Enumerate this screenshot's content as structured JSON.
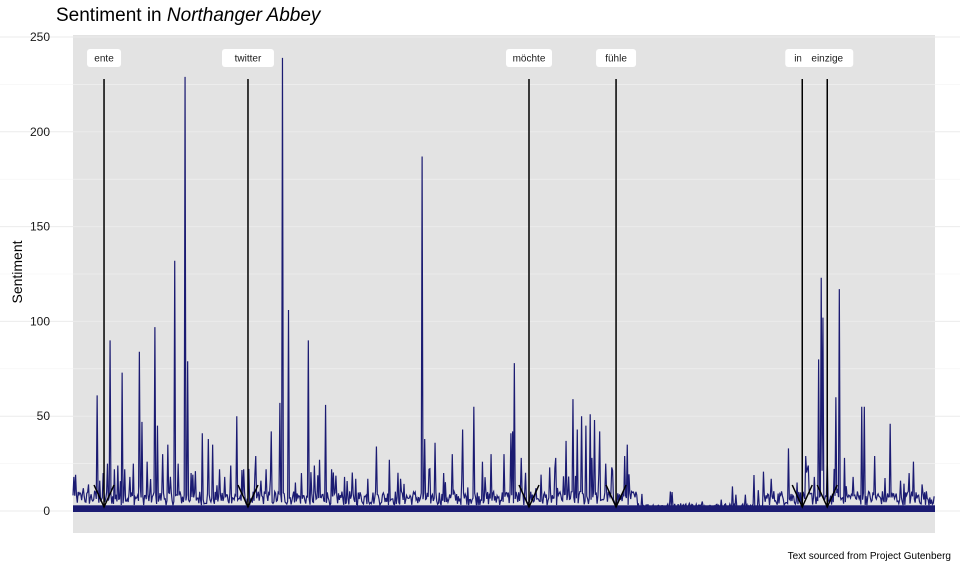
{
  "chart_data": {
    "type": "area",
    "title_prefix": "Sentiment in ",
    "title_italic": "Northanger Abbey",
    "xlabel": "",
    "ylabel": "Sentiment",
    "caption": "Text sourced from Project Gutenberg",
    "ylim": [
      0,
      250
    ],
    "yticks": [
      0,
      50,
      100,
      150,
      200,
      250
    ],
    "xlim": [
      0,
      1000
    ],
    "grid": true,
    "line_color": "#1b1b72",
    "panel_color": "#e3e3e3",
    "baseline": 3,
    "spikes": [
      [
        1,
        18
      ],
      [
        12,
        12
      ],
      [
        18,
        14
      ],
      [
        28,
        61
      ],
      [
        31,
        16
      ],
      [
        35,
        20
      ],
      [
        40,
        25
      ],
      [
        43,
        90
      ],
      [
        48,
        22
      ],
      [
        52,
        24
      ],
      [
        57,
        73
      ],
      [
        60,
        22
      ],
      [
        66,
        18
      ],
      [
        70,
        25
      ],
      [
        77,
        84
      ],
      [
        80,
        47
      ],
      [
        86,
        26
      ],
      [
        95,
        97
      ],
      [
        98,
        45
      ],
      [
        104,
        30
      ],
      [
        110,
        35
      ],
      [
        118,
        132
      ],
      [
        122,
        25
      ],
      [
        130,
        229
      ],
      [
        133,
        79
      ],
      [
        137,
        20
      ],
      [
        142,
        21
      ],
      [
        150,
        41
      ],
      [
        157,
        38
      ],
      [
        162,
        35
      ],
      [
        170,
        22
      ],
      [
        176,
        18
      ],
      [
        183,
        24
      ],
      [
        190,
        50
      ],
      [
        198,
        22
      ],
      [
        212,
        29
      ],
      [
        218,
        16
      ],
      [
        224,
        22
      ],
      [
        230,
        42
      ],
      [
        240,
        57
      ],
      [
        243,
        239
      ],
      [
        250,
        106
      ],
      [
        258,
        15
      ],
      [
        265,
        20
      ],
      [
        273,
        90
      ],
      [
        280,
        24
      ],
      [
        286,
        27
      ],
      [
        293,
        56
      ],
      [
        300,
        22
      ],
      [
        315,
        18
      ],
      [
        328,
        17
      ],
      [
        342,
        17
      ],
      [
        352,
        34
      ],
      [
        367,
        27
      ],
      [
        380,
        17
      ],
      [
        405,
        187
      ],
      [
        408,
        38
      ],
      [
        413,
        22
      ],
      [
        420,
        36
      ],
      [
        430,
        20
      ],
      [
        440,
        30
      ],
      [
        452,
        43
      ],
      [
        465,
        55
      ],
      [
        475,
        26
      ],
      [
        485,
        30
      ],
      [
        500,
        30
      ],
      [
        508,
        41
      ],
      [
        510,
        42
      ],
      [
        512,
        78
      ],
      [
        520,
        28
      ],
      [
        537,
        12
      ],
      [
        553,
        23
      ],
      [
        560,
        28
      ],
      [
        572,
        37
      ],
      [
        580,
        59
      ],
      [
        585,
        43
      ],
      [
        590,
        50
      ],
      [
        595,
        45
      ],
      [
        600,
        51
      ],
      [
        602,
        28
      ],
      [
        605,
        48
      ],
      [
        611,
        42
      ],
      [
        618,
        25
      ],
      [
        625,
        23
      ],
      [
        640,
        29
      ],
      [
        643,
        35
      ],
      [
        660,
        9
      ],
      [
        695,
        10
      ],
      [
        705,
        4
      ],
      [
        715,
        4
      ],
      [
        730,
        5
      ],
      [
        752,
        6
      ],
      [
        765,
        13
      ],
      [
        790,
        19
      ],
      [
        795,
        11
      ],
      [
        810,
        17
      ],
      [
        830,
        33
      ],
      [
        840,
        15
      ],
      [
        850,
        29
      ],
      [
        853,
        24
      ],
      [
        860,
        18
      ],
      [
        865,
        80
      ],
      [
        868,
        123
      ],
      [
        870,
        102
      ],
      [
        875,
        28
      ],
      [
        885,
        60
      ],
      [
        889,
        117
      ],
      [
        895,
        28
      ],
      [
        905,
        18
      ],
      [
        915,
        55
      ],
      [
        918,
        55
      ],
      [
        930,
        29
      ],
      [
        948,
        46
      ],
      [
        960,
        16
      ],
      [
        970,
        20
      ],
      [
        975,
        26
      ],
      [
        985,
        14
      ]
    ],
    "annotations": [
      {
        "label": "ente",
        "x": 36
      },
      {
        "label": "twitter",
        "x": 203
      },
      {
        "label": "möchte",
        "x": 529
      },
      {
        "label": "fühle",
        "x": 630
      },
      {
        "label": "info",
        "x": 846
      },
      {
        "label": "einzige",
        "x": 875
      }
    ]
  }
}
